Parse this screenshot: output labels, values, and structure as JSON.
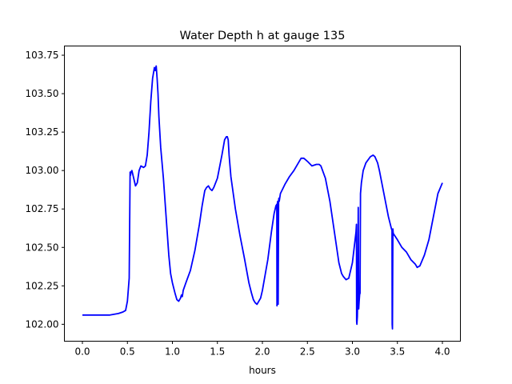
{
  "chart_data": {
    "type": "line",
    "title": "Water Depth h at gauge 135",
    "xlabel": "hours",
    "ylabel": "",
    "xlim": [
      -0.2,
      4.2
    ],
    "ylim": [
      101.89,
      103.81
    ],
    "xticks": [
      0.0,
      0.5,
      1.0,
      1.5,
      2.0,
      2.5,
      3.0,
      3.5,
      4.0
    ],
    "xtick_labels": [
      "0.0",
      "0.5",
      "1.0",
      "1.5",
      "2.0",
      "2.5",
      "3.0",
      "3.5",
      "4.0"
    ],
    "yticks": [
      102.0,
      102.25,
      102.5,
      102.75,
      103.0,
      103.25,
      103.5,
      103.75
    ],
    "ytick_labels": [
      "102.00",
      "102.25",
      "102.50",
      "102.75",
      "103.00",
      "103.25",
      "103.50",
      "103.75"
    ],
    "grid": false,
    "series": [
      {
        "color": "#0000ff",
        "x": [
          0.0,
          0.1,
          0.2,
          0.3,
          0.4,
          0.45,
          0.48,
          0.5,
          0.52,
          0.53,
          0.535,
          0.54,
          0.55,
          0.57,
          0.59,
          0.61,
          0.63,
          0.65,
          0.68,
          0.7,
          0.72,
          0.74,
          0.76,
          0.78,
          0.8,
          0.81,
          0.82,
          0.83,
          0.84,
          0.85,
          0.87,
          0.9,
          0.93,
          0.96,
          0.98,
          1.0,
          1.03,
          1.05,
          1.07,
          1.09,
          1.1,
          1.11,
          1.12,
          1.15,
          1.2,
          1.25,
          1.3,
          1.33,
          1.36,
          1.38,
          1.4,
          1.42,
          1.44,
          1.46,
          1.5,
          1.55,
          1.58,
          1.6,
          1.61,
          1.62,
          1.63,
          1.65,
          1.7,
          1.75,
          1.8,
          1.85,
          1.88,
          1.9,
          1.92,
          1.94,
          1.96,
          1.98,
          2.0,
          2.03,
          2.06,
          2.1,
          2.13,
          2.15,
          2.16,
          2.162,
          2.165,
          2.17,
          2.175,
          2.18,
          2.183,
          2.187,
          2.2,
          2.25,
          2.3,
          2.35,
          2.4,
          2.43,
          2.46,
          2.5,
          2.55,
          2.6,
          2.63,
          2.65,
          2.7,
          2.75,
          2.8,
          2.85,
          2.88,
          2.9,
          2.93,
          2.96,
          3.0,
          3.03,
          3.04,
          3.045,
          3.047,
          3.05,
          3.055,
          3.06,
          3.065,
          3.07,
          3.075,
          3.08,
          3.082,
          3.085,
          3.09,
          3.1,
          3.12,
          3.15,
          3.2,
          3.23,
          3.25,
          3.28,
          3.3,
          3.35,
          3.4,
          3.43,
          3.44,
          3.442,
          3.445,
          3.45,
          3.452,
          3.455,
          3.5,
          3.55,
          3.6,
          3.65,
          3.7,
          3.72,
          3.75,
          3.8,
          3.85,
          3.9,
          3.95,
          4.0
        ],
        "y": [
          102.06,
          102.06,
          102.06,
          102.06,
          102.07,
          102.08,
          102.09,
          102.15,
          102.3,
          102.99,
          102.97,
          102.99,
          103.0,
          102.95,
          102.9,
          102.92,
          103.0,
          103.03,
          103.02,
          103.03,
          103.1,
          103.25,
          103.45,
          103.6,
          103.67,
          103.65,
          103.68,
          103.6,
          103.5,
          103.35,
          103.15,
          102.95,
          102.7,
          102.45,
          102.33,
          102.27,
          102.2,
          102.16,
          102.15,
          102.17,
          102.19,
          102.18,
          102.22,
          102.27,
          102.35,
          102.48,
          102.65,
          102.77,
          102.87,
          102.89,
          102.9,
          102.88,
          102.87,
          102.89,
          102.95,
          103.1,
          103.2,
          103.22,
          103.22,
          103.2,
          103.1,
          102.96,
          102.75,
          102.58,
          102.43,
          102.27,
          102.2,
          102.16,
          102.14,
          102.13,
          102.15,
          102.17,
          102.22,
          102.32,
          102.42,
          102.6,
          102.72,
          102.77,
          102.78,
          102.12,
          102.78,
          102.8,
          102.13,
          102.8,
          102.82,
          102.8,
          102.85,
          102.91,
          102.96,
          103.0,
          103.05,
          103.08,
          103.08,
          103.06,
          103.03,
          103.04,
          103.04,
          103.03,
          102.95,
          102.8,
          102.6,
          102.4,
          102.33,
          102.31,
          102.29,
          102.3,
          102.4,
          102.55,
          102.6,
          102.65,
          102.02,
          102.0,
          102.05,
          102.2,
          102.76,
          102.1,
          102.15,
          102.19,
          102.2,
          102.2,
          102.85,
          102.92,
          103.0,
          103.05,
          103.09,
          103.1,
          103.09,
          103.05,
          103.0,
          102.85,
          102.7,
          102.63,
          102.61,
          102.0,
          101.97,
          102.62,
          102.6,
          102.59,
          102.55,
          102.5,
          102.47,
          102.42,
          102.39,
          102.37,
          102.38,
          102.45,
          102.55,
          102.7,
          102.85,
          102.92
        ]
      }
    ]
  }
}
